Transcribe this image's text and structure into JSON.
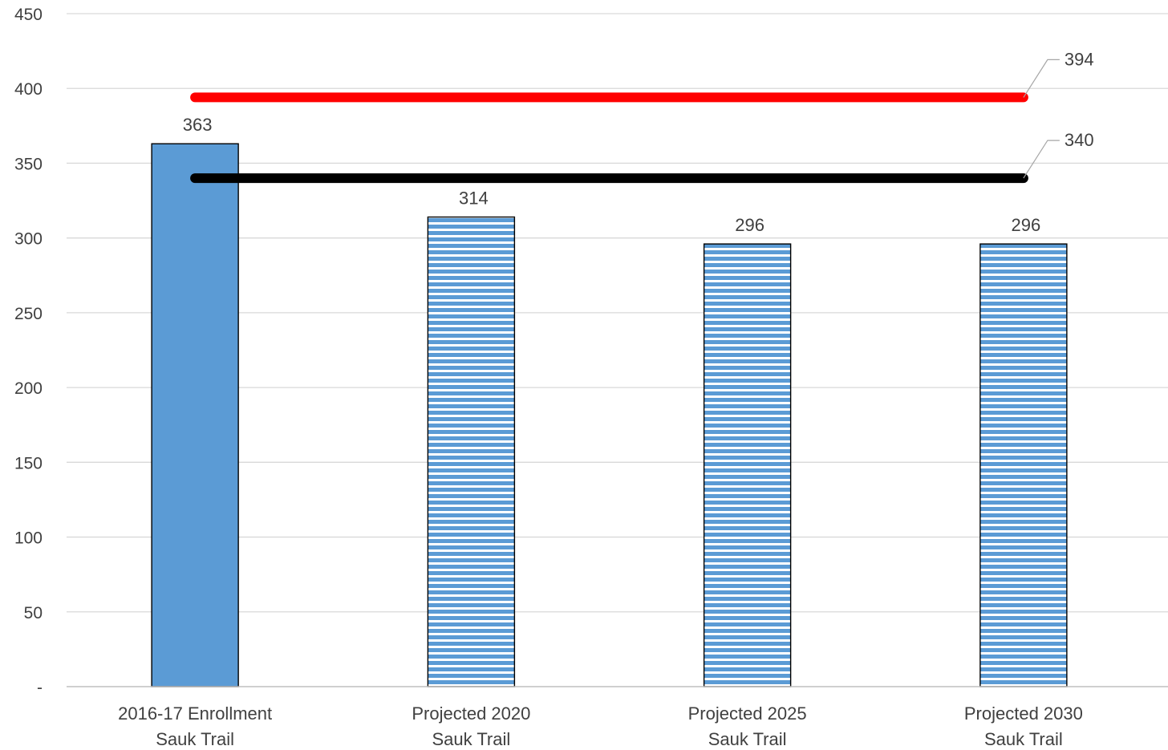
{
  "chart_data": {
    "type": "bar",
    "categories": [
      [
        "2016-17 Enrollment",
        "Sauk Trail"
      ],
      [
        "Projected 2020",
        "Sauk Trail"
      ],
      [
        "Projected 2025",
        "Sauk Trail"
      ],
      [
        "Projected 2030",
        "Sauk Trail"
      ]
    ],
    "values": [
      363,
      314,
      296,
      296
    ],
    "bar_styles": [
      "solid",
      "striped",
      "striped",
      "striped"
    ],
    "y_tick_labels": [
      "-",
      "50",
      "100",
      "150",
      "200",
      "250",
      "300",
      "350",
      "400",
      "450"
    ],
    "ylim": [
      0,
      450
    ],
    "ytick_step": 50,
    "grid": true,
    "reference_lines": [
      {
        "value": 394,
        "label": "394",
        "color": "#ff0000"
      },
      {
        "value": 340,
        "label": "340",
        "color": "#000000"
      }
    ],
    "colors": {
      "bar": "#5b9bd5",
      "stripe_bg": "#ffffff",
      "gridline": "#d9d9d9",
      "axis": "#bfbfbf",
      "bar_border": "#000000"
    },
    "title": "",
    "xlabel": "",
    "ylabel": ""
  }
}
